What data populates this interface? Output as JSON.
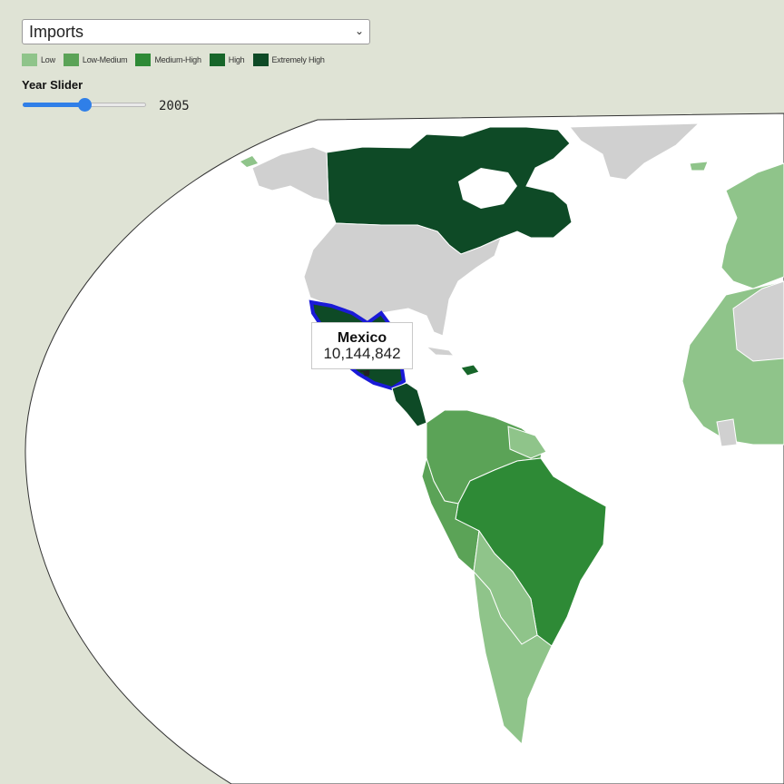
{
  "selector": {
    "value": "Imports",
    "chevron_icon": "chevron-down-icon"
  },
  "legend": {
    "items": [
      {
        "label": "Low",
        "color": "#8fc48a"
      },
      {
        "label": "Low-Medium",
        "color": "#5ba357"
      },
      {
        "label": "Medium-High",
        "color": "#2e8a36"
      },
      {
        "label": "High",
        "color": "#17662a"
      },
      {
        "label": "Extremely High",
        "color": "#0e4a26"
      }
    ]
  },
  "year_slider": {
    "title": "Year Slider",
    "value": "2005",
    "level": 0.5
  },
  "tooltip": {
    "country": "Mexico",
    "value": "10,144,842"
  },
  "colors": {
    "background": "#dfe3d5",
    "ocean": "#ffffff",
    "no_data": "#d0d0d0",
    "highlight_outline": "#1a1ad8",
    "slider_accent": "#2f7fe8"
  }
}
